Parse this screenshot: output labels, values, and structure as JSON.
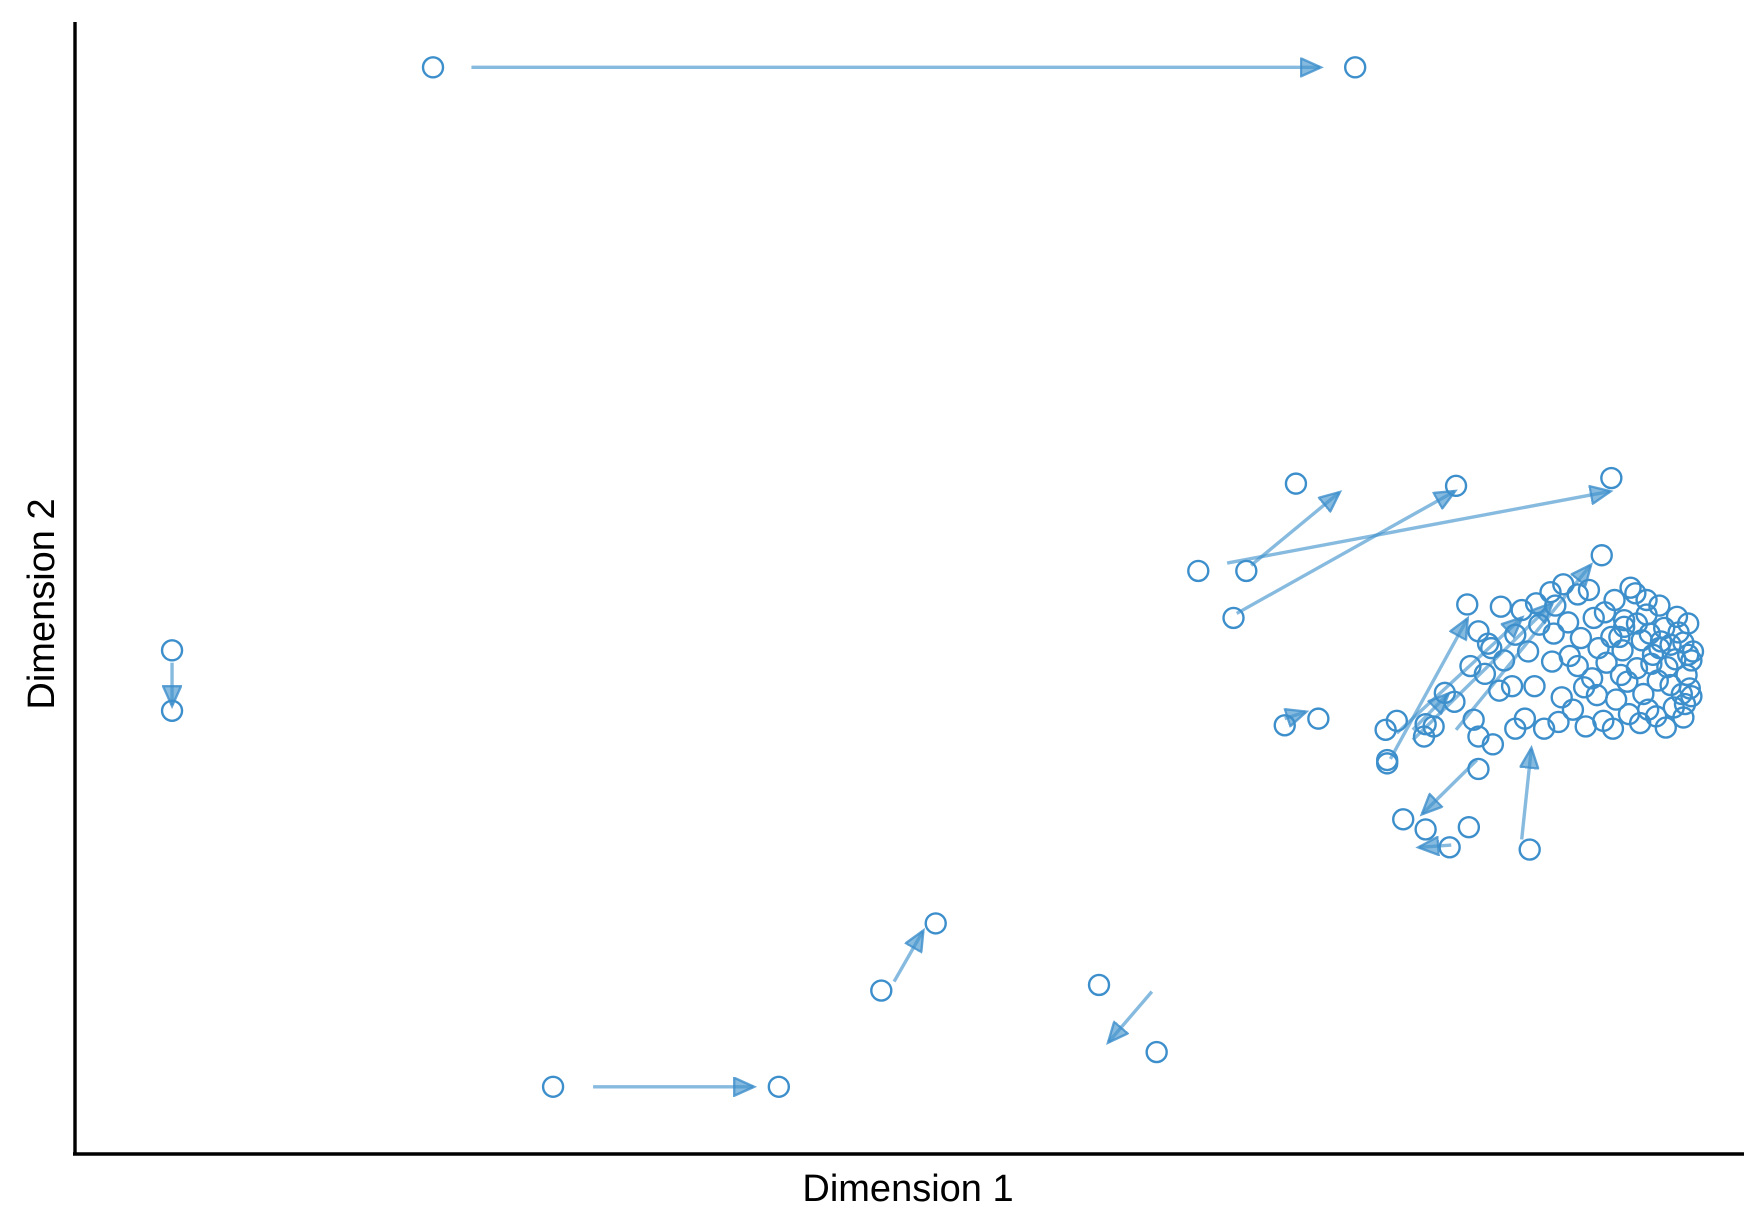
{
  "chart_data": {
    "type": "scatter",
    "title": "",
    "xlabel": "Dimension 1",
    "ylabel": "Dimension 2",
    "xlim": [
      0,
      100
    ],
    "ylim": [
      0,
      100
    ],
    "ticks": "none",
    "grid": false,
    "legend": "none",
    "color": "#3d8fcc",
    "points": [
      [
        20.8,
        95.5
      ],
      [
        78.4,
        95.5
      ],
      [
        4.5,
        43.4
      ],
      [
        4.5,
        38.0
      ],
      [
        28.3,
        4.4
      ],
      [
        42.4,
        4.4
      ],
      [
        48.8,
        13.0
      ],
      [
        52.2,
        19.0
      ],
      [
        66.0,
        7.5
      ],
      [
        62.4,
        13.5
      ],
      [
        68.6,
        50.5
      ],
      [
        71.6,
        50.5
      ],
      [
        74.7,
        58.3
      ],
      [
        84.7,
        58.1
      ],
      [
        94.4,
        58.8
      ],
      [
        70.8,
        46.3
      ],
      [
        74.0,
        36.7
      ],
      [
        76.1,
        37.3
      ],
      [
        80.4,
        33.3
      ],
      [
        80.4,
        33.6
      ],
      [
        81.4,
        28.3
      ],
      [
        82.8,
        27.4
      ],
      [
        84.3,
        25.8
      ],
      [
        85.5,
        27.6
      ],
      [
        89.3,
        25.6
      ],
      [
        86.1,
        32.8
      ],
      [
        85.8,
        37.2
      ],
      [
        82.8,
        36.8
      ],
      [
        80.3,
        36.3
      ],
      [
        81.0,
        37.1
      ],
      [
        82.7,
        35.7
      ],
      [
        83.3,
        36.6
      ],
      [
        84.0,
        39.6
      ],
      [
        84.6,
        38.8
      ],
      [
        85.4,
        47.5
      ],
      [
        86.1,
        45.1
      ],
      [
        86.7,
        44.0
      ],
      [
        87.5,
        47.3
      ],
      [
        88.8,
        47.0
      ],
      [
        89.7,
        47.6
      ],
      [
        90.6,
        48.6
      ],
      [
        91.4,
        49.3
      ],
      [
        92.3,
        48.4
      ],
      [
        93.8,
        51.9
      ],
      [
        86.5,
        41.3
      ],
      [
        87.4,
        39.8
      ],
      [
        88.2,
        40.2
      ],
      [
        89.0,
        37.3
      ],
      [
        90.2,
        36.4
      ],
      [
        91.1,
        37.0
      ],
      [
        92.0,
        38.1
      ],
      [
        86.1,
        35.7
      ],
      [
        87.0,
        35.0
      ],
      [
        88.4,
        36.4
      ],
      [
        89.6,
        40.2
      ],
      [
        90.7,
        42.4
      ],
      [
        91.3,
        39.2
      ],
      [
        92.7,
        40.1
      ],
      [
        93.6,
        43.6
      ],
      [
        94.4,
        44.6
      ],
      [
        95.2,
        46.1
      ],
      [
        96.0,
        45.8
      ],
      [
        96.8,
        44.9
      ],
      [
        97.4,
        43.6
      ],
      [
        97.9,
        41.9
      ],
      [
        98.4,
        42.6
      ],
      [
        98.9,
        44.1
      ],
      [
        99.1,
        41.2
      ],
      [
        99.3,
        40.0
      ],
      [
        99.0,
        38.6
      ],
      [
        98.3,
        38.3
      ],
      [
        97.2,
        37.5
      ],
      [
        96.4,
        39.5
      ],
      [
        95.5,
        37.7
      ],
      [
        94.7,
        39.0
      ],
      [
        93.9,
        37.1
      ],
      [
        93.2,
        40.9
      ],
      [
        94.1,
        42.3
      ],
      [
        95.1,
        43.4
      ],
      [
        96.0,
        41.8
      ],
      [
        97.0,
        43.0
      ],
      [
        97.7,
        45.4
      ],
      [
        98.5,
        46.4
      ],
      [
        99.2,
        45.8
      ],
      [
        99.5,
        43.3
      ],
      [
        96.6,
        47.9
      ],
      [
        95.6,
        49.0
      ],
      [
        94.6,
        47.9
      ],
      [
        93.3,
        46.3
      ],
      [
        92.5,
        44.5
      ],
      [
        91.8,
        42.9
      ],
      [
        90.8,
        44.9
      ],
      [
        89.9,
        45.7
      ],
      [
        89.2,
        43.3
      ],
      [
        88.4,
        44.8
      ],
      [
        87.7,
        42.5
      ],
      [
        86.9,
        43.6
      ],
      [
        85.6,
        42.0
      ],
      [
        92.8,
        36.6
      ],
      [
        94.5,
        36.4
      ],
      [
        96.2,
        36.9
      ],
      [
        97.8,
        36.5
      ],
      [
        98.9,
        37.4
      ],
      [
        99.4,
        39.3
      ],
      [
        97.3,
        40.7
      ],
      [
        96.7,
        38.1
      ],
      [
        95.4,
        40.6
      ],
      [
        94.9,
        44.6
      ],
      [
        96.3,
        44.3
      ],
      [
        97.5,
        44.2
      ],
      [
        98.1,
        40.3
      ],
      [
        98.8,
        39.5
      ],
      [
        99.4,
        42.5
      ],
      [
        96.9,
        42.2
      ],
      [
        95.0,
        41.2
      ],
      [
        93.5,
        39.4
      ],
      [
        92.3,
        42.0
      ],
      [
        91.7,
        45.9
      ],
      [
        90.9,
        47.4
      ],
      [
        93.0,
        48.8
      ],
      [
        94.0,
        46.8
      ],
      [
        95.9,
        48.5
      ],
      [
        97.4,
        47.4
      ],
      [
        98.6,
        45.0
      ],
      [
        99.2,
        43.0
      ],
      [
        98.1,
        43.9
      ],
      [
        96.6,
        46.6
      ],
      [
        95.2,
        45.5
      ]
    ],
    "arrows": [
      [
        23.2,
        95.5,
        76.2,
        95.5
      ],
      [
        4.5,
        42.3,
        4.5,
        38.5
      ],
      [
        30.8,
        4.4,
        40.8,
        4.4
      ],
      [
        49.6,
        13.8,
        51.4,
        18.3
      ],
      [
        65.7,
        12.9,
        63.0,
        8.4
      ],
      [
        70.4,
        51.2,
        94.3,
        57.6
      ],
      [
        71.9,
        51.0,
        77.4,
        57.5
      ],
      [
        71.0,
        46.7,
        84.6,
        57.6
      ],
      [
        74.0,
        37.3,
        75.3,
        37.9
      ],
      [
        80.6,
        33.7,
        85.4,
        46.2
      ],
      [
        81.0,
        36.0,
        88.8,
        46.3
      ],
      [
        82.0,
        36.3,
        84.2,
        39.5
      ],
      [
        86.0,
        33.6,
        82.6,
        28.8
      ],
      [
        84.4,
        26.0,
        82.4,
        25.8
      ],
      [
        88.8,
        26.5,
        89.4,
        34.6
      ],
      [
        84.7,
        36.3,
        93.1,
        51.0
      ],
      [
        82.0,
        35.4,
        90.7,
        47.6
      ]
    ]
  }
}
